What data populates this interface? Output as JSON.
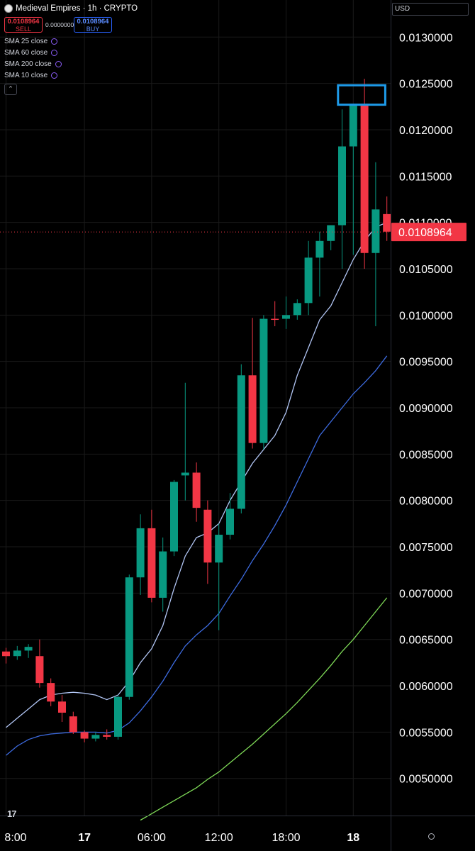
{
  "header": {
    "title": "Medieval Empires · 1h · CRYPTO",
    "sell": {
      "price": "0.0108964",
      "label": "SELL"
    },
    "spread": "0.0000000",
    "buy": {
      "price": "0.0108964",
      "label": "BUY"
    },
    "indicators": [
      "SMA 25 close",
      "SMA 60 close",
      "SMA 200 close",
      "SMA 10 close"
    ],
    "collapse_glyph": "⌃"
  },
  "currency": "USD",
  "chart_data": {
    "type": "candlestick",
    "y_axis": {
      "min": 0.0046,
      "max": 0.0134,
      "ticks": [
        "0.0130000",
        "0.0125000",
        "0.0120000",
        "0.0115000",
        "0.0110000",
        "0.0105000",
        "0.0100000",
        "0.0095000",
        "0.0090000",
        "0.0085000",
        "0.0080000",
        "0.0075000",
        "0.0070000",
        "0.0065000",
        "0.0060000",
        "0.0055000",
        "0.0050000"
      ]
    },
    "x_axis": {
      "ticks": [
        "8:00",
        "17",
        "06:00",
        "12:00",
        "18:00",
        "18"
      ]
    },
    "last_price": "0.0108964",
    "colors": {
      "up": "#089981",
      "down": "#f23645",
      "sma10": "#b2c6f5",
      "sma25": "#3d6be0",
      "sma60": "#7ed957",
      "highlight": "#1e9be9",
      "grid": "#1a1a1a"
    },
    "candles": [
      [
        0.00637,
        0.00641,
        0.00624,
        0.00632
      ],
      [
        0.00632,
        0.00643,
        0.00628,
        0.00638
      ],
      [
        0.00638,
        0.00645,
        0.0063,
        0.00642
      ],
      [
        0.00632,
        0.0065,
        0.00598,
        0.00603
      ],
      [
        0.00603,
        0.00608,
        0.00578,
        0.00583
      ],
      [
        0.00583,
        0.0059,
        0.00561,
        0.00571
      ],
      [
        0.00567,
        0.00572,
        0.00548,
        0.0055
      ],
      [
        0.0055,
        0.00552,
        0.00539,
        0.00543
      ],
      [
        0.00543,
        0.0055,
        0.0054,
        0.00547
      ],
      [
        0.00547,
        0.00553,
        0.00542,
        0.00545
      ],
      [
        0.00545,
        0.0059,
        0.00542,
        0.00588
      ],
      [
        0.00588,
        0.0072,
        0.00585,
        0.00717
      ],
      [
        0.00717,
        0.00785,
        0.00698,
        0.0077
      ],
      [
        0.0077,
        0.0079,
        0.0069,
        0.00695
      ],
      [
        0.00695,
        0.0076,
        0.0068,
        0.00745
      ],
      [
        0.00745,
        0.00822,
        0.0074,
        0.0082
      ],
      [
        0.00827,
        0.00927,
        0.008,
        0.0083
      ],
      [
        0.0083,
        0.00841,
        0.00777,
        0.00792
      ],
      [
        0.0079,
        0.008,
        0.0071,
        0.00733
      ],
      [
        0.00733,
        0.00775,
        0.0066,
        0.00763
      ],
      [
        0.00763,
        0.00808,
        0.00758,
        0.00791
      ],
      [
        0.00791,
        0.00947,
        0.00786,
        0.00935
      ],
      [
        0.00935,
        0.00997,
        0.00856,
        0.00862
      ],
      [
        0.00862,
        0.01,
        0.00855,
        0.00996
      ],
      [
        0.00996,
        0.01015,
        0.00988,
        0.00995
      ],
      [
        0.00996,
        0.0102,
        0.00985,
        0.01
      ],
      [
        0.01,
        0.01017,
        0.00995,
        0.01013
      ],
      [
        0.01013,
        0.0108,
        0.01,
        0.01062
      ],
      [
        0.01062,
        0.0109,
        0.0102,
        0.0108
      ],
      [
        0.0108,
        0.01097,
        0.0107,
        0.01097
      ],
      [
        0.01097,
        0.01222,
        0.0105,
        0.01182
      ],
      [
        0.01182,
        0.01228,
        0.01065,
        0.01228
      ],
      [
        0.01228,
        0.01255,
        0.0105,
        0.01067
      ],
      [
        0.01067,
        0.01165,
        0.00988,
        0.01114
      ],
      [
        0.01109,
        0.01128,
        0.0108,
        0.0109
      ]
    ],
    "sma10": [
      0.00555,
      0.00565,
      0.00575,
      0.00585,
      0.0059,
      0.00592,
      0.00593,
      0.00592,
      0.0059,
      0.00585,
      0.0059,
      0.00605,
      0.00625,
      0.0064,
      0.00665,
      0.00705,
      0.0074,
      0.0076,
      0.00765,
      0.00775,
      0.008,
      0.0082,
      0.0084,
      0.00855,
      0.0087,
      0.00895,
      0.00935,
      0.00965,
      0.00995,
      0.0101,
      0.01035,
      0.0106,
      0.0108,
      0.01095,
      0.011
    ],
    "sma25": [
      0.00525,
      0.00535,
      0.00542,
      0.00546,
      0.00548,
      0.00549,
      0.0055,
      0.0055,
      0.0055,
      0.00549,
      0.00552,
      0.0056,
      0.00573,
      0.00588,
      0.00605,
      0.00625,
      0.00643,
      0.00655,
      0.00665,
      0.00678,
      0.00697,
      0.00715,
      0.00735,
      0.00753,
      0.00773,
      0.00795,
      0.0082,
      0.00845,
      0.0087,
      0.00885,
      0.009,
      0.00915,
      0.00927,
      0.0094,
      0.00956
    ],
    "sma60": [
      null,
      null,
      null,
      null,
      null,
      null,
      null,
      null,
      null,
      null,
      null,
      null,
      0.00455,
      0.00462,
      0.00469,
      0.00476,
      0.00483,
      0.0049,
      0.00499,
      0.00507,
      0.00517,
      0.00527,
      0.00537,
      0.00548,
      0.00559,
      0.0057,
      0.00582,
      0.00595,
      0.00608,
      0.00622,
      0.00637,
      0.0065,
      0.00665,
      0.0068,
      0.00695
    ],
    "highlight": {
      "from_index": 31,
      "to_index": 33,
      "low": 0.01227,
      "high": 0.01248
    }
  }
}
